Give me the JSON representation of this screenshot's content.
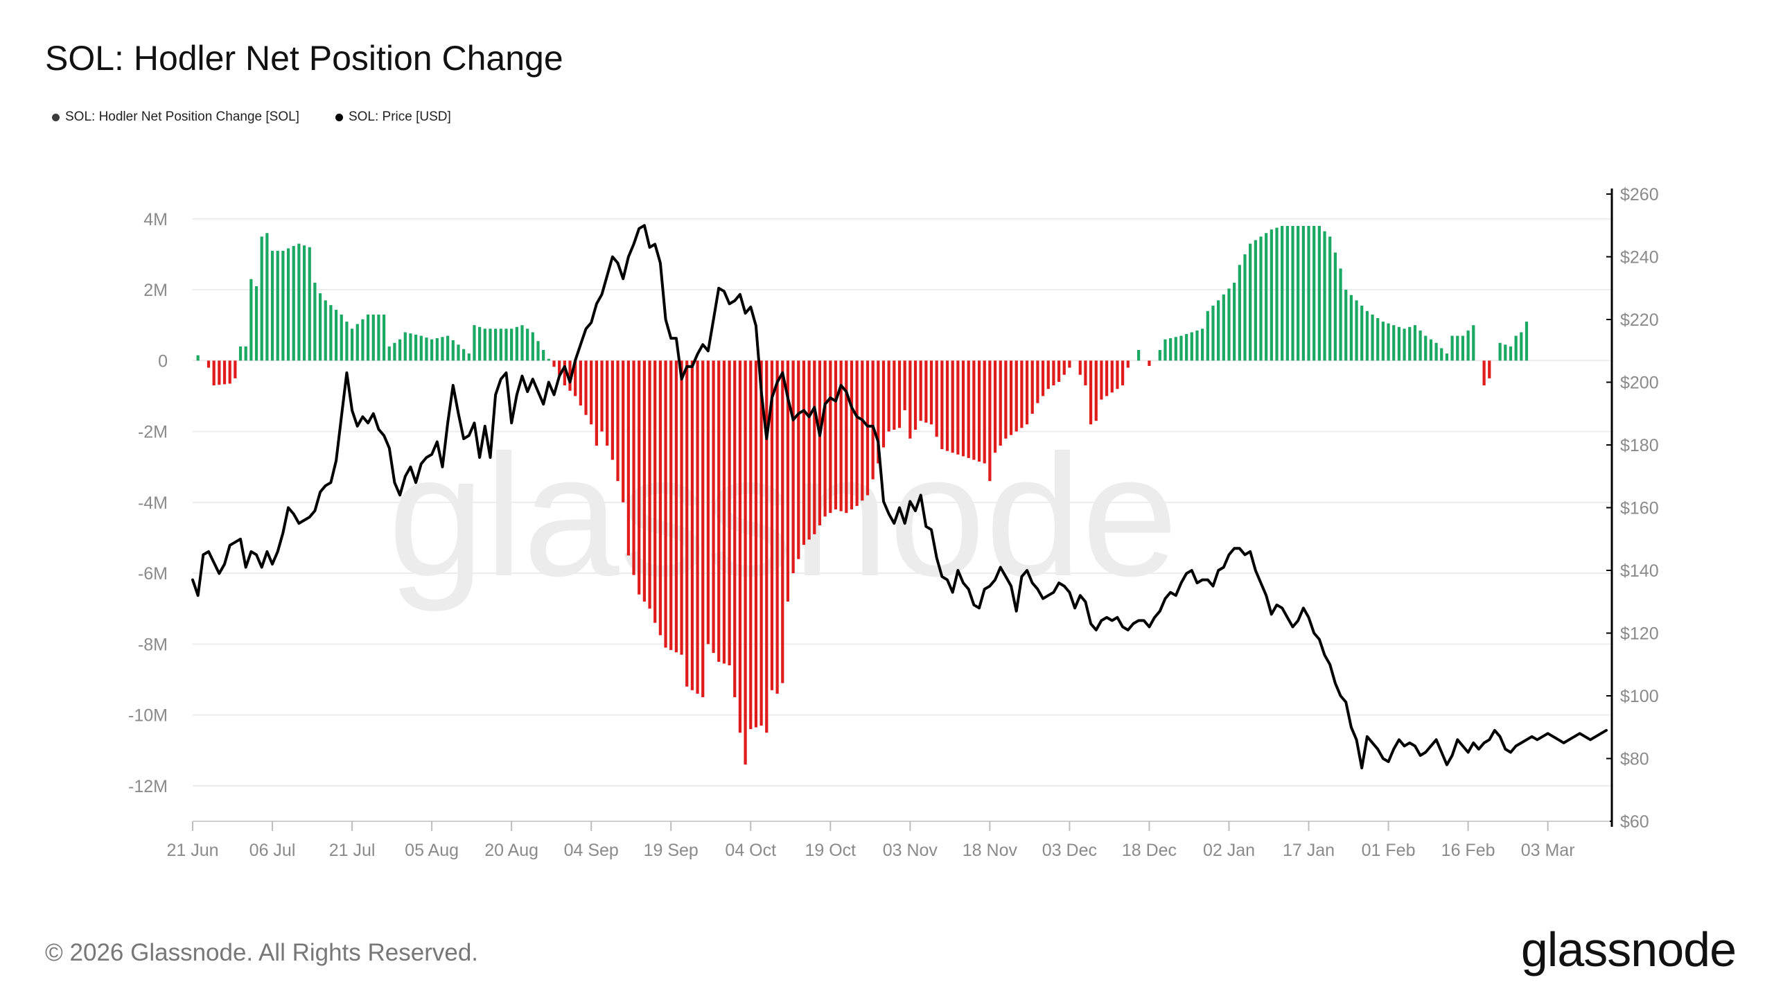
{
  "title": "SOL: Hodler Net Position Change",
  "legend": [
    {
      "label": "SOL: Hodler Net Position Change [SOL]",
      "color": "#3a3a3a"
    },
    {
      "label": "SOL: Price [USD]",
      "color": "#000000"
    }
  ],
  "watermark": "glassnode",
  "footer": {
    "copyright": "© 2026 Glassnode. All Rights Reserved.",
    "logo": "glassnode"
  },
  "colors": {
    "positive": "#1aa863",
    "negative": "#e01b1b",
    "price": "#000000",
    "grid": "#ececec",
    "axis_text": "#8a8a8a",
    "watermark": "#ececec"
  },
  "chart_data": {
    "type": "bar+line",
    "title": "SOL: Hodler Net Position Change",
    "x_ticks": [
      "21 Jun",
      "06 Jul",
      "21 Jul",
      "05 Aug",
      "20 Aug",
      "04 Sep",
      "19 Sep",
      "04 Oct",
      "19 Oct",
      "03 Nov",
      "18 Nov",
      "03 Dec",
      "18 Dec",
      "02 Jan",
      "17 Jan",
      "01 Feb",
      "16 Feb",
      "03 Mar"
    ],
    "x_tick_day_index": [
      0,
      15,
      30,
      45,
      60,
      75,
      90,
      105,
      120,
      135,
      150,
      165,
      180,
      195,
      210,
      225,
      240,
      255
    ],
    "days_total": 266,
    "left_axis": {
      "ylim": [
        -13000000,
        4700000
      ],
      "ticks": [
        4000000,
        2000000,
        0,
        -2000000,
        -4000000,
        -6000000,
        -8000000,
        -10000000,
        -12000000
      ],
      "tick_labels": [
        "4M",
        "2M",
        "0",
        "-2M",
        "-4M",
        "-6M",
        "-8M",
        "-10M",
        "-12M"
      ]
    },
    "right_axis": {
      "ylim": [
        60,
        260
      ],
      "ticks": [
        260,
        240,
        220,
        200,
        180,
        160,
        140,
        120,
        100,
        80,
        60
      ],
      "tick_labels": [
        "$260",
        "$240",
        "$220",
        "$200",
        "$180",
        "$160",
        "$140",
        "$120",
        "$100",
        "$80",
        "$60"
      ]
    },
    "net_position_change_keyframes": [
      [
        0,
        0
      ],
      [
        1,
        150000
      ],
      [
        2,
        0
      ],
      [
        3,
        -200000
      ],
      [
        4,
        -700000
      ],
      [
        7,
        -650000
      ],
      [
        8,
        -500000
      ],
      [
        9,
        400000
      ],
      [
        10,
        400000
      ],
      [
        11,
        2300000
      ],
      [
        12,
        2100000
      ],
      [
        13,
        3500000
      ],
      [
        14,
        3600000
      ],
      [
        15,
        3100000
      ],
      [
        17,
        3100000
      ],
      [
        20,
        3300000
      ],
      [
        22,
        3200000
      ],
      [
        23,
        2200000
      ],
      [
        24,
        1900000
      ],
      [
        25,
        1700000
      ],
      [
        28,
        1300000
      ],
      [
        30,
        900000
      ],
      [
        33,
        1300000
      ],
      [
        36,
        1300000
      ],
      [
        37,
        400000
      ],
      [
        39,
        600000
      ],
      [
        40,
        800000
      ],
      [
        43,
        700000
      ],
      [
        45,
        600000
      ],
      [
        48,
        700000
      ],
      [
        52,
        200000
      ],
      [
        53,
        1000000
      ],
      [
        55,
        900000
      ],
      [
        60,
        900000
      ],
      [
        62,
        1000000
      ],
      [
        64,
        800000
      ],
      [
        67,
        50000
      ],
      [
        69,
        -400000
      ],
      [
        70,
        -700000
      ],
      [
        72,
        -1000000
      ],
      [
        75,
        -1800000
      ],
      [
        76,
        -2400000
      ],
      [
        77,
        -2000000
      ],
      [
        79,
        -2800000
      ],
      [
        81,
        -4000000
      ],
      [
        82,
        -5500000
      ],
      [
        84,
        -6600000
      ],
      [
        86,
        -7000000
      ],
      [
        87,
        -7400000
      ],
      [
        89,
        -8100000
      ],
      [
        92,
        -8300000
      ],
      [
        93,
        -9200000
      ],
      [
        96,
        -9500000
      ],
      [
        97,
        -8000000
      ],
      [
        99,
        -8500000
      ],
      [
        101,
        -8600000
      ],
      [
        102,
        -9500000
      ],
      [
        103,
        -10500000
      ],
      [
        104,
        -11400000
      ],
      [
        105,
        -10400000
      ],
      [
        107,
        -10300000
      ],
      [
        108,
        -10500000
      ],
      [
        109,
        -9300000
      ],
      [
        110,
        -9400000
      ],
      [
        111,
        -9100000
      ],
      [
        112,
        -6800000
      ],
      [
        113,
        -6000000
      ],
      [
        115,
        -5200000
      ],
      [
        117,
        -4900000
      ],
      [
        119,
        -4400000
      ],
      [
        121,
        -4200000
      ],
      [
        123,
        -4300000
      ],
      [
        125,
        -4100000
      ],
      [
        127,
        -3800000
      ],
      [
        129,
        -2900000
      ],
      [
        131,
        -2000000
      ],
      [
        133,
        -1900000
      ],
      [
        134,
        -1400000
      ],
      [
        135,
        -2200000
      ],
      [
        137,
        -1700000
      ],
      [
        139,
        -1800000
      ],
      [
        141,
        -2500000
      ],
      [
        143,
        -2600000
      ],
      [
        145,
        -2700000
      ],
      [
        147,
        -2800000
      ],
      [
        149,
        -2900000
      ],
      [
        150,
        -3400000
      ],
      [
        151,
        -2600000
      ],
      [
        153,
        -2200000
      ],
      [
        155,
        -2000000
      ],
      [
        157,
        -1800000
      ],
      [
        159,
        -1200000
      ],
      [
        161,
        -800000
      ],
      [
        163,
        -600000
      ],
      [
        165,
        -200000
      ],
      [
        166,
        0
      ],
      [
        167,
        -400000
      ],
      [
        168,
        -700000
      ],
      [
        169,
        -1800000
      ],
      [
        170,
        -1700000
      ],
      [
        171,
        -1100000
      ],
      [
        173,
        -900000
      ],
      [
        175,
        -700000
      ],
      [
        176,
        -200000
      ],
      [
        177,
        0
      ],
      [
        178,
        300000
      ],
      [
        179,
        0
      ],
      [
        180,
        -150000
      ],
      [
        181,
        0
      ],
      [
        182,
        300000
      ],
      [
        183,
        600000
      ],
      [
        186,
        700000
      ],
      [
        188,
        800000
      ],
      [
        190,
        900000
      ],
      [
        191,
        1400000
      ],
      [
        193,
        1700000
      ],
      [
        196,
        2200000
      ],
      [
        197,
        2700000
      ],
      [
        199,
        3300000
      ],
      [
        201,
        3500000
      ],
      [
        203,
        3700000
      ],
      [
        205,
        3800000
      ],
      [
        207,
        3800000
      ],
      [
        210,
        3800000
      ],
      [
        212,
        3800000
      ],
      [
        214,
        3500000
      ],
      [
        216,
        2600000
      ],
      [
        217,
        2000000
      ],
      [
        219,
        1700000
      ],
      [
        221,
        1400000
      ],
      [
        224,
        1100000
      ],
      [
        226,
        1000000
      ],
      [
        228,
        900000
      ],
      [
        230,
        1000000
      ],
      [
        232,
        700000
      ],
      [
        234,
        500000
      ],
      [
        236,
        200000
      ],
      [
        237,
        700000
      ],
      [
        239,
        700000
      ],
      [
        241,
        1000000
      ],
      [
        242,
        0
      ],
      [
        243,
        -700000
      ],
      [
        244,
        -500000
      ],
      [
        245,
        0
      ],
      [
        246,
        500000
      ],
      [
        248,
        400000
      ],
      [
        249,
        700000
      ],
      [
        250,
        800000
      ],
      [
        251,
        1100000
      ]
    ],
    "price_keyframes": [
      [
        0,
        137
      ],
      [
        1,
        132
      ],
      [
        2,
        145
      ],
      [
        3,
        146
      ],
      [
        5,
        139
      ],
      [
        6,
        142
      ],
      [
        7,
        148
      ],
      [
        9,
        150
      ],
      [
        10,
        141
      ],
      [
        11,
        146
      ],
      [
        12,
        145
      ],
      [
        13,
        141
      ],
      [
        14,
        146
      ],
      [
        15,
        142
      ],
      [
        16,
        146
      ],
      [
        17,
        152
      ],
      [
        18,
        160
      ],
      [
        19,
        158
      ],
      [
        20,
        155
      ],
      [
        22,
        157
      ],
      [
        23,
        159
      ],
      [
        24,
        165
      ],
      [
        25,
        167
      ],
      [
        26,
        168
      ],
      [
        27,
        175
      ],
      [
        28,
        189
      ],
      [
        29,
        203
      ],
      [
        30,
        191
      ],
      [
        31,
        186
      ],
      [
        32,
        189
      ],
      [
        33,
        187
      ],
      [
        34,
        190
      ],
      [
        35,
        185
      ],
      [
        36,
        183
      ],
      [
        37,
        179
      ],
      [
        38,
        168
      ],
      [
        39,
        164
      ],
      [
        40,
        170
      ],
      [
        41,
        173
      ],
      [
        42,
        168
      ],
      [
        43,
        174
      ],
      [
        44,
        176
      ],
      [
        45,
        177
      ],
      [
        46,
        181
      ],
      [
        47,
        173
      ],
      [
        48,
        187
      ],
      [
        49,
        199
      ],
      [
        50,
        190
      ],
      [
        51,
        182
      ],
      [
        52,
        183
      ],
      [
        53,
        187
      ],
      [
        54,
        176
      ],
      [
        55,
        186
      ],
      [
        56,
        176
      ],
      [
        57,
        196
      ],
      [
        58,
        201
      ],
      [
        59,
        203
      ],
      [
        60,
        187
      ],
      [
        61,
        196
      ],
      [
        62,
        202
      ],
      [
        63,
        197
      ],
      [
        64,
        201
      ],
      [
        65,
        197
      ],
      [
        66,
        193
      ],
      [
        67,
        200
      ],
      [
        68,
        196
      ],
      [
        69,
        202
      ],
      [
        70,
        205
      ],
      [
        71,
        200
      ],
      [
        72,
        207
      ],
      [
        73,
        212
      ],
      [
        74,
        217
      ],
      [
        75,
        219
      ],
      [
        76,
        225
      ],
      [
        77,
        228
      ],
      [
        78,
        234
      ],
      [
        79,
        240
      ],
      [
        80,
        238
      ],
      [
        81,
        233
      ],
      [
        82,
        240
      ],
      [
        83,
        244
      ],
      [
        84,
        249
      ],
      [
        85,
        250
      ],
      [
        86,
        243
      ],
      [
        87,
        244
      ],
      [
        88,
        238
      ],
      [
        89,
        220
      ],
      [
        90,
        214
      ],
      [
        91,
        214
      ],
      [
        92,
        201
      ],
      [
        93,
        205
      ],
      [
        94,
        205
      ],
      [
        95,
        209
      ],
      [
        96,
        212
      ],
      [
        97,
        210
      ],
      [
        98,
        220
      ],
      [
        99,
        230
      ],
      [
        100,
        229
      ],
      [
        101,
        225
      ],
      [
        102,
        226
      ],
      [
        103,
        228
      ],
      [
        104,
        222
      ],
      [
        105,
        224
      ],
      [
        106,
        218
      ],
      [
        107,
        197
      ],
      [
        108,
        182
      ],
      [
        109,
        195
      ],
      [
        110,
        200
      ],
      [
        111,
        203
      ],
      [
        112,
        195
      ],
      [
        113,
        188
      ],
      [
        114,
        190
      ],
      [
        115,
        191
      ],
      [
        116,
        189
      ],
      [
        117,
        192
      ],
      [
        118,
        183
      ],
      [
        119,
        193
      ],
      [
        120,
        195
      ],
      [
        121,
        194
      ],
      [
        122,
        199
      ],
      [
        123,
        197
      ],
      [
        124,
        192
      ],
      [
        125,
        189
      ],
      [
        126,
        188
      ],
      [
        127,
        186
      ],
      [
        128,
        186
      ],
      [
        129,
        181
      ],
      [
        130,
        162
      ],
      [
        131,
        158
      ],
      [
        132,
        155
      ],
      [
        133,
        160
      ],
      [
        134,
        155
      ],
      [
        135,
        162
      ],
      [
        136,
        159
      ],
      [
        137,
        164
      ],
      [
        138,
        154
      ],
      [
        139,
        153
      ],
      [
        140,
        144
      ],
      [
        141,
        138
      ],
      [
        142,
        137
      ],
      [
        143,
        133
      ],
      [
        144,
        140
      ],
      [
        145,
        136
      ],
      [
        146,
        134
      ],
      [
        147,
        129
      ],
      [
        148,
        128
      ],
      [
        149,
        134
      ],
      [
        150,
        135
      ],
      [
        151,
        137
      ],
      [
        152,
        141
      ],
      [
        153,
        138
      ],
      [
        154,
        135
      ],
      [
        155,
        127
      ],
      [
        156,
        138
      ],
      [
        157,
        140
      ],
      [
        158,
        136
      ],
      [
        159,
        134
      ],
      [
        160,
        131
      ],
      [
        161,
        132
      ],
      [
        162,
        133
      ],
      [
        163,
        136
      ],
      [
        164,
        135
      ],
      [
        165,
        133
      ],
      [
        166,
        128
      ],
      [
        167,
        132
      ],
      [
        168,
        130
      ],
      [
        169,
        123
      ],
      [
        170,
        121
      ],
      [
        171,
        124
      ],
      [
        172,
        125
      ],
      [
        173,
        124
      ],
      [
        174,
        125
      ],
      [
        175,
        122
      ],
      [
        176,
        121
      ],
      [
        177,
        123
      ],
      [
        178,
        124
      ],
      [
        179,
        124
      ],
      [
        180,
        122
      ],
      [
        181,
        125
      ],
      [
        182,
        127
      ],
      [
        183,
        131
      ],
      [
        184,
        133
      ],
      [
        185,
        132
      ],
      [
        186,
        136
      ],
      [
        187,
        139
      ],
      [
        188,
        140
      ],
      [
        189,
        136
      ],
      [
        190,
        137
      ],
      [
        191,
        137
      ],
      [
        192,
        135
      ],
      [
        193,
        140
      ],
      [
        194,
        141
      ],
      [
        195,
        145
      ],
      [
        196,
        147
      ],
      [
        197,
        147
      ],
      [
        198,
        145
      ],
      [
        199,
        146
      ],
      [
        200,
        140
      ],
      [
        201,
        136
      ],
      [
        202,
        132
      ],
      [
        203,
        126
      ],
      [
        204,
        129
      ],
      [
        205,
        128
      ],
      [
        206,
        125
      ],
      [
        207,
        122
      ],
      [
        208,
        124
      ],
      [
        209,
        128
      ],
      [
        210,
        125
      ],
      [
        211,
        120
      ],
      [
        212,
        118
      ],
      [
        213,
        113
      ],
      [
        214,
        110
      ],
      [
        215,
        104
      ],
      [
        216,
        100
      ],
      [
        217,
        98
      ],
      [
        218,
        90
      ],
      [
        219,
        86
      ],
      [
        220,
        77
      ],
      [
        221,
        87
      ],
      [
        222,
        85
      ],
      [
        223,
        83
      ],
      [
        224,
        80
      ],
      [
        225,
        79
      ],
      [
        226,
        83
      ],
      [
        227,
        86
      ],
      [
        228,
        84
      ],
      [
        229,
        85
      ],
      [
        230,
        84
      ],
      [
        231,
        81
      ],
      [
        232,
        82
      ],
      [
        233,
        84
      ],
      [
        234,
        86
      ],
      [
        235,
        82
      ],
      [
        236,
        78
      ],
      [
        237,
        81
      ],
      [
        238,
        86
      ],
      [
        239,
        84
      ],
      [
        240,
        82
      ],
      [
        241,
        85
      ],
      [
        242,
        83
      ],
      [
        243,
        85
      ],
      [
        244,
        86
      ],
      [
        245,
        89
      ],
      [
        246,
        87
      ],
      [
        247,
        83
      ],
      [
        248,
        82
      ],
      [
        249,
        84
      ],
      [
        250,
        85
      ],
      [
        251,
        86
      ],
      [
        252,
        87
      ],
      [
        253,
        86
      ],
      [
        254,
        87
      ],
      [
        255,
        88
      ],
      [
        256,
        87
      ],
      [
        257,
        86
      ],
      [
        258,
        85
      ],
      [
        259,
        86
      ],
      [
        260,
        87
      ],
      [
        261,
        88
      ],
      [
        262,
        87
      ],
      [
        263,
        86
      ],
      [
        264,
        87
      ],
      [
        265,
        88
      ],
      [
        266,
        89
      ]
    ]
  }
}
